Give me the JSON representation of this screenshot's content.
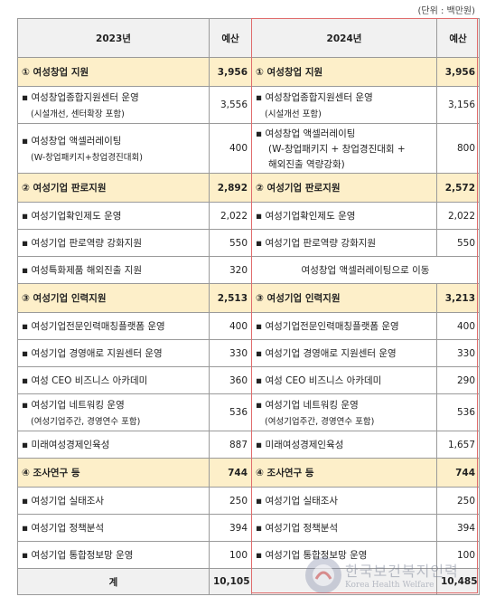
{
  "unit": "(단위 : 백만원)",
  "header": {
    "y2023": "2023년",
    "budget1": "예산",
    "y2024": "2024년",
    "budget2": "예산"
  },
  "rows": [
    {
      "l": "① 여성창업 지원",
      "v1": "3,956",
      "r": "① 여성창업 지원",
      "v2": "3,956"
    },
    {
      "l": "여성창업종합지원센터 운영",
      "l_sub": "(시설개선, 센터확장 포함)",
      "v1": "3,556",
      "r": "여성창업종합지원센터 운영",
      "r_sub": "(시설개선 포함)",
      "v2": "3,156"
    },
    {
      "l": "여성창업 액셀러레이팅",
      "l_sub": "(W-창업패키지+창업경진대회)",
      "v1": "400",
      "r": "여성창업 액셀러레이팅",
      "r_sub": "(W-창업패키지 + 창업경진대회 +",
      "r_sub2": "해외진출 역량강화)",
      "v2": "800"
    },
    {
      "l": "② 여성기업 판로지원",
      "v1": "2,892",
      "r": "② 여성기업 판로지원",
      "v2": "2,572"
    },
    {
      "l": "여성기업확인제도 운영",
      "v1": "2,022",
      "r": "여성기업확인제도 운영",
      "v2": "2,022"
    },
    {
      "l": "여성기업 판로역량 강화지원",
      "v1": "550",
      "r": "여성기업 판로역량 강화지원",
      "v2": "550"
    },
    {
      "l": "여성특화제품 해외진출 지원",
      "v1": "320",
      "r_merged": "여성창업 액셀러레이팅으로 이동"
    },
    {
      "l": "③ 여성기업 인력지원",
      "v1": "2,513",
      "r": "③ 여성기업 인력지원",
      "v2": "3,213"
    },
    {
      "l": "여성기업전문인력매칭플랫폼 운영",
      "v1": "400",
      "r": "여성기업전문인력매칭플랫폼 운영",
      "v2": "400"
    },
    {
      "l": "여성기업 경영애로 지원센터 운영",
      "v1": "330",
      "r": "여성기업 경영애로 지원센터 운영",
      "v2": "330"
    },
    {
      "l": "여성 CEO 비즈니스 아카데미",
      "v1": "360",
      "r": "여성 CEO 비즈니스 아카데미",
      "v2": "290"
    },
    {
      "l": "여성기업 네트워킹 운영",
      "l_sub": "(여성기업주간, 경영연수 포함)",
      "v1": "536",
      "r": "여성기업 네트워킹 운영",
      "r_sub": "(여성기업주간, 경영연수 포함)",
      "v2": "536"
    },
    {
      "l": "미래여성경제인육성",
      "v1": "887",
      "r": "미래여성경제인육성",
      "v2": "1,657"
    },
    {
      "l": "④ 조사연구 등",
      "v1": "744",
      "r": "④ 조사연구 등",
      "v2": "744"
    },
    {
      "l": "여성기업 실태조사",
      "v1": "250",
      "r": "여성기업 실태조사",
      "v2": "250"
    },
    {
      "l": "여성기업 정책분석",
      "v1": "394",
      "r": "여성기업 정책분석",
      "v2": "394"
    },
    {
      "l": "여성기업 통합정보망 운영",
      "v1": "100",
      "r": "여성기업 통합정보망 운영",
      "v2": "100"
    }
  ],
  "total": {
    "label": "계",
    "v1": "10,105",
    "v2": "10,485"
  },
  "watermark": {
    "main": "한국보건복지인력",
    "sub": "Korea Health Welfare"
  }
}
